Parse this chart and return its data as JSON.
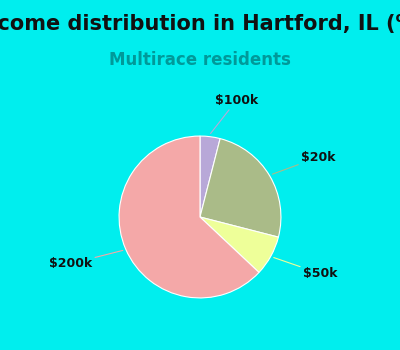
{
  "title": "Income distribution in Hartford, IL (%)",
  "subtitle": "Multirace residents",
  "title_fontsize": 15,
  "subtitle_fontsize": 12,
  "title_color": "#111111",
  "subtitle_color": "#009999",
  "background_color": "#00EEEE",
  "chart_bg_color": "#E0F0E8",
  "slices": [
    {
      "label": "$100k",
      "value": 4,
      "color": "#B8A8D8"
    },
    {
      "label": "$20k",
      "value": 25,
      "color": "#AABB88"
    },
    {
      "label": "$50k",
      "value": 8,
      "color": "#EEFF99"
    },
    {
      "label": "$200k",
      "value": 63,
      "color": "#F4A8A8"
    }
  ],
  "label_fontsize": 9,
  "label_color": "#111111",
  "startangle": 90
}
